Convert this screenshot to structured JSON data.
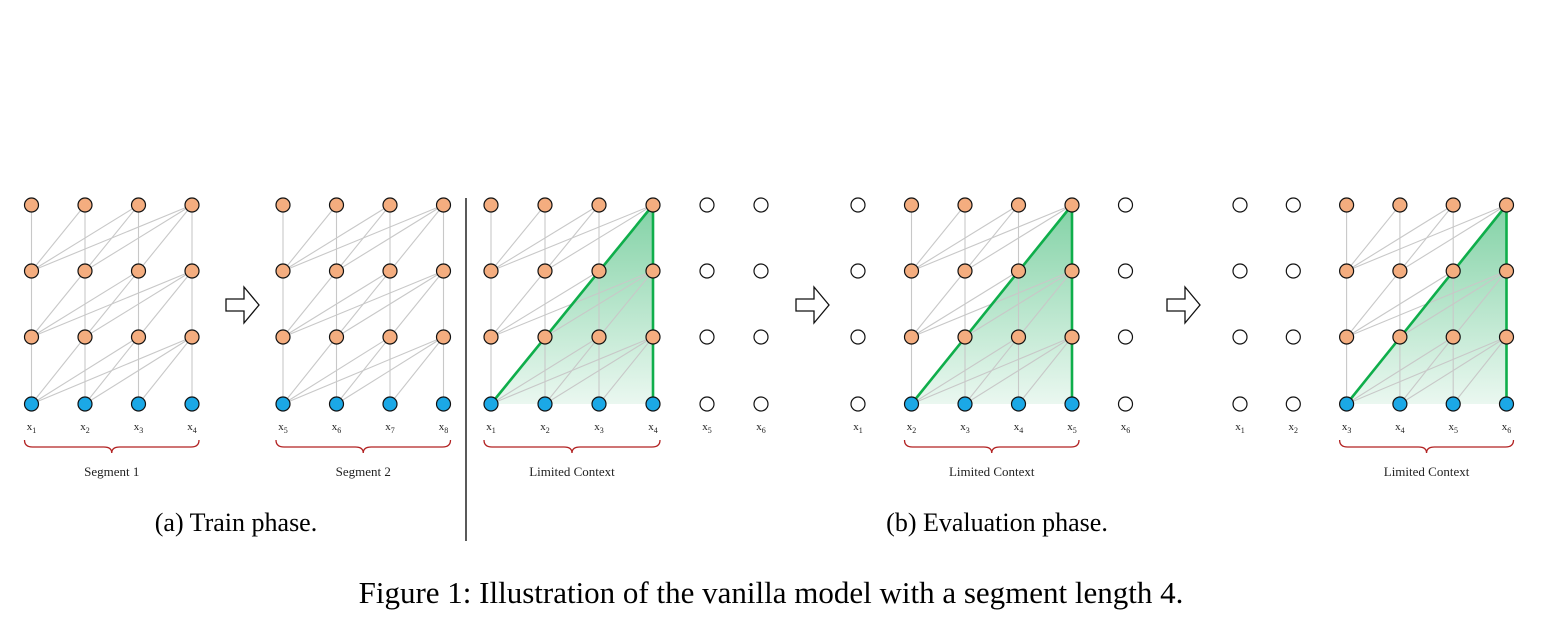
{
  "colors": {
    "hidden_node": "#f4ad7f",
    "input_node": "#1ba8e6",
    "empty_node": "#ffffff",
    "edge": "#c8c8c8",
    "context_line": "#0fae4b",
    "context_fill": "#2fb46a",
    "brace": "#b22222"
  },
  "panels": [
    {
      "tokens": [
        "x1",
        "x2",
        "x3",
        "x4"
      ],
      "brace_label": "Segment 1",
      "context": false
    },
    {
      "tokens": [
        "x5",
        "x6",
        "x7",
        "x8"
      ],
      "brace_label": "Segment 2",
      "context": false
    },
    {
      "tokens": [
        "x1",
        "x2",
        "x3",
        "x4",
        "x5",
        "x6"
      ],
      "brace_label": "Limited Context",
      "context": true
    },
    {
      "tokens": [
        "x1",
        "x2",
        "x3",
        "x4",
        "x5",
        "x6"
      ],
      "brace_label": "Limited Context",
      "context": true
    },
    {
      "tokens": [
        "x1",
        "x2",
        "x3",
        "x4",
        "x5",
        "x6"
      ],
      "brace_label": "Limited Context",
      "context": true
    }
  ],
  "captions": {
    "train": "(a) Train phase.",
    "eval": "(b) Evaluation phase."
  },
  "figure_caption": "Figure 1: Illustration of the vanilla model with a segment length 4."
}
